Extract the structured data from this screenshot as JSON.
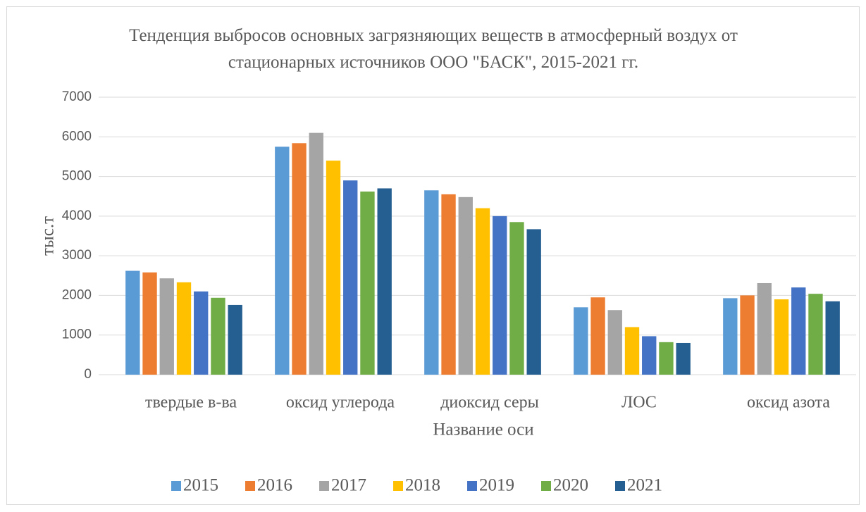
{
  "chart_data": {
    "type": "bar",
    "title": "Тенденция выбросов основных загрязняющих веществ в атмосферный воздух от стационарных источников ООО \"БАСК\", 2015-2021 гг.",
    "x_label": "Название оси",
    "y_label": "тыс.т",
    "categories": [
      "твердые в-ва",
      "оксид углерода",
      "диоксид серы",
      "ЛОС",
      "оксид азота"
    ],
    "series": [
      {
        "name": "2015",
        "color": "#5b9bd5",
        "values": [
          2620,
          5750,
          4650,
          1700,
          1930
        ]
      },
      {
        "name": "2016",
        "color": "#ed7d31",
        "values": [
          2580,
          5840,
          4550,
          1950,
          2000
        ]
      },
      {
        "name": "2017",
        "color": "#a5a5a5",
        "values": [
          2430,
          6100,
          4480,
          1630,
          2310
        ]
      },
      {
        "name": "2018",
        "color": "#ffc000",
        "values": [
          2330,
          5400,
          4200,
          1200,
          1900
        ]
      },
      {
        "name": "2019",
        "color": "#4472c4",
        "values": [
          2100,
          4900,
          4000,
          970,
          2200
        ]
      },
      {
        "name": "2020",
        "color": "#70ad47",
        "values": [
          1940,
          4620,
          3850,
          820,
          2040
        ]
      },
      {
        "name": "2021",
        "color": "#255e91",
        "values": [
          1760,
          4700,
          3670,
          800,
          1850
        ]
      }
    ],
    "ylim": [
      0,
      7000
    ],
    "yticks": [
      0,
      1000,
      2000,
      3000,
      4000,
      5000,
      6000,
      7000
    ],
    "grid": true,
    "legend": "bottom"
  }
}
